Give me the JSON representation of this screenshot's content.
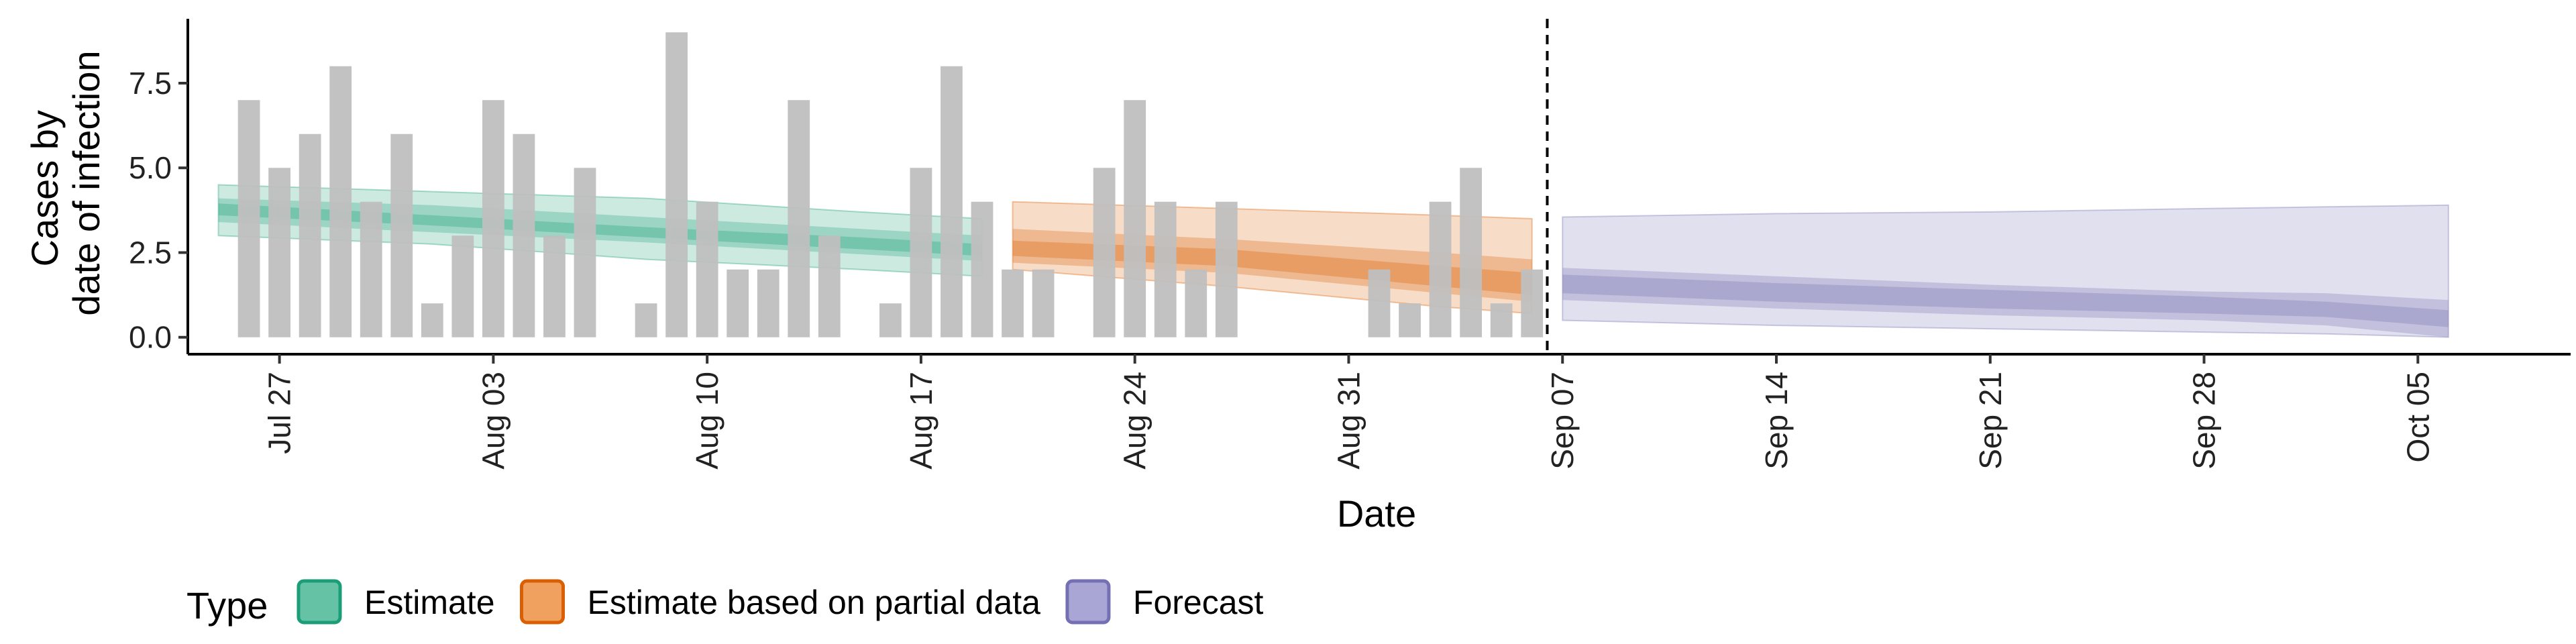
{
  "chart_data": {
    "type": "bar",
    "xlabel": "Date",
    "ylabel_lines": [
      "Cases by",
      "date of infection"
    ],
    "x_start": "2020-07-24",
    "x_end": "2020-10-10",
    "ylim": [
      -0.5,
      9.4
    ],
    "y_ticks": [
      0,
      2.5,
      5,
      7.5
    ],
    "y_tick_labels": [
      "0.0",
      "2.5",
      "5.0",
      "7.5"
    ],
    "x_ticks": [
      "2020-07-27",
      "2020-08-03",
      "2020-08-10",
      "2020-08-17",
      "2020-08-24",
      "2020-08-31",
      "2020-09-07",
      "2020-09-14",
      "2020-09-21",
      "2020-09-28",
      "2020-10-05"
    ],
    "x_tick_labels": [
      "Jul 27",
      "Aug 03",
      "Aug 10",
      "Aug 17",
      "Aug 24",
      "Aug 31",
      "Sep 07",
      "Sep 14",
      "Sep 21",
      "Sep 28",
      "Oct 05"
    ],
    "vline_date": "2020-09-06",
    "bar_dates": [
      "2020-07-26",
      "2020-07-27",
      "2020-07-28",
      "2020-07-29",
      "2020-07-30",
      "2020-07-31",
      "2020-08-01",
      "2020-08-02",
      "2020-08-03",
      "2020-08-04",
      "2020-08-05",
      "2020-08-06",
      "2020-08-07",
      "2020-08-08",
      "2020-08-09",
      "2020-08-10",
      "2020-08-11",
      "2020-08-12",
      "2020-08-13",
      "2020-08-14",
      "2020-08-15",
      "2020-08-16",
      "2020-08-17",
      "2020-08-18",
      "2020-08-19",
      "2020-08-20",
      "2020-08-21",
      "2020-08-22",
      "2020-08-23",
      "2020-08-24",
      "2020-08-25",
      "2020-08-26",
      "2020-08-27",
      "2020-08-28",
      "2020-08-29",
      "2020-08-30",
      "2020-08-31",
      "2020-09-01",
      "2020-09-02",
      "2020-09-03",
      "2020-09-04",
      "2020-09-05",
      "2020-09-06"
    ],
    "bar_values": [
      7,
      5,
      6,
      8,
      4,
      6,
      1,
      3,
      7,
      6,
      3,
      5,
      0,
      1,
      9,
      4,
      2,
      2,
      7,
      3,
      0,
      1,
      5,
      8,
      4,
      2,
      2,
      0,
      5,
      7,
      4,
      2,
      4,
      0,
      0,
      0,
      0,
      2,
      1,
      4,
      5,
      1,
      2
    ],
    "bands": [
      {
        "type": "Estimate",
        "color": "#1b9e77",
        "dates": [
          "2020-07-25",
          "2020-08-01",
          "2020-08-08",
          "2020-08-15",
          "2020-08-19"
        ],
        "mid": [
          3.8,
          3.45,
          3.1,
          2.8,
          2.6
        ],
        "lower90": [
          3.0,
          2.75,
          2.3,
          2.0,
          1.8
        ],
        "upper90": [
          4.5,
          4.3,
          4.1,
          3.7,
          3.5
        ],
        "lower50": [
          3.4,
          3.1,
          2.8,
          2.45,
          2.25
        ],
        "upper50": [
          4.1,
          3.9,
          3.55,
          3.2,
          3.0
        ],
        "lower20": [
          3.6,
          3.3,
          2.95,
          2.6,
          2.4
        ],
        "upper20": [
          3.95,
          3.6,
          3.25,
          2.95,
          2.75
        ]
      },
      {
        "type": "Estimate based on partial data",
        "color": "#d95f02",
        "dates": [
          "2020-08-20",
          "2020-08-27",
          "2020-09-03",
          "2020-09-06"
        ],
        "mid": [
          2.6,
          2.35,
          1.8,
          1.6
        ],
        "lower90": [
          2.0,
          1.5,
          0.9,
          0.7
        ],
        "upper90": [
          4.0,
          3.8,
          3.6,
          3.5
        ],
        "lower50": [
          2.2,
          1.9,
          1.3,
          1.05
        ],
        "upper50": [
          3.2,
          2.9,
          2.5,
          2.3
        ],
        "lower20": [
          2.4,
          2.1,
          1.5,
          1.25
        ],
        "upper20": [
          2.85,
          2.6,
          2.1,
          1.9
        ]
      },
      {
        "type": "Forecast",
        "color": "#7570b3",
        "dates": [
          "2020-09-07",
          "2020-09-14",
          "2020-09-21",
          "2020-09-28",
          "2020-10-02",
          "2020-10-06"
        ],
        "mid": [
          1.6,
          1.4,
          1.2,
          1.0,
          0.85,
          0.55
        ],
        "lower90": [
          0.5,
          0.35,
          0.25,
          0.15,
          0.1,
          0.0
        ],
        "upper90": [
          3.55,
          3.65,
          3.7,
          3.8,
          3.85,
          3.9
        ],
        "lower50": [
          1.1,
          0.85,
          0.65,
          0.5,
          0.35,
          0.0
        ],
        "upper50": [
          2.05,
          1.8,
          1.55,
          1.35,
          1.3,
          1.1
        ],
        "lower20": [
          1.3,
          1.05,
          0.85,
          0.7,
          0.6,
          0.3
        ],
        "upper20": [
          1.85,
          1.6,
          1.4,
          1.2,
          1.05,
          0.8
        ]
      }
    ],
    "legend": {
      "title": "Type",
      "position": "bottom",
      "items": [
        {
          "label": "Estimate",
          "fill": "#66c2a5",
          "stroke": "#1b9e77"
        },
        {
          "label": "Estimate based on partial data",
          "fill": "#f1a15f",
          "stroke": "#d95f02"
        },
        {
          "label": "Forecast",
          "fill": "#a9a6d6",
          "stroke": "#7570b3"
        }
      ]
    },
    "bar_color": "#bfbfbf",
    "grid": false
  }
}
